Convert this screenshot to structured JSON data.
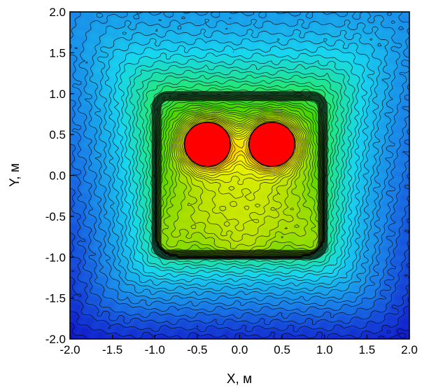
{
  "chart_data": {
    "type": "heatmap",
    "subtype": "filled-contour",
    "title": "",
    "xlabel": "X, м",
    "ylabel": "Y, м",
    "xlim": [
      -2.0,
      2.0
    ],
    "ylim": [
      -2.0,
      2.0
    ],
    "x_ticks": [
      "-2.0",
      "-1.5",
      "-1.0",
      "-0.5",
      "0.0",
      "0.5",
      "1.0",
      "1.5",
      "2.0"
    ],
    "y_ticks": [
      "2.0",
      "1.5",
      "1.0",
      "0.5",
      "0.0",
      "-0.5",
      "-1.0",
      "-1.5",
      "-2.0"
    ],
    "x_tick_values": [
      -2.0,
      -1.5,
      -1.0,
      -0.5,
      0.0,
      0.5,
      1.0,
      1.5,
      2.0
    ],
    "y_tick_values": [
      2.0,
      1.5,
      1.0,
      0.5,
      0.0,
      -0.5,
      -1.0,
      -1.5,
      -2.0
    ],
    "grid": false,
    "legend": "none",
    "colormap": [
      "#1010c8",
      "#1a7ee8",
      "#18d6f0",
      "#22e87a",
      "#49d500",
      "#b4e000",
      "#f4f400",
      "#ffaa00",
      "#ff5a00",
      "#ff0000"
    ],
    "contour_line_color": "#000000",
    "features": {
      "square_region": {
        "x": [
          -1.0,
          1.0
        ],
        "y": [
          -1.0,
          1.0
        ]
      },
      "hot_spots": [
        {
          "x": -0.38,
          "y": 0.38,
          "r": 0.27
        },
        {
          "x": 0.38,
          "y": 0.38,
          "r": 0.27
        }
      ]
    }
  }
}
